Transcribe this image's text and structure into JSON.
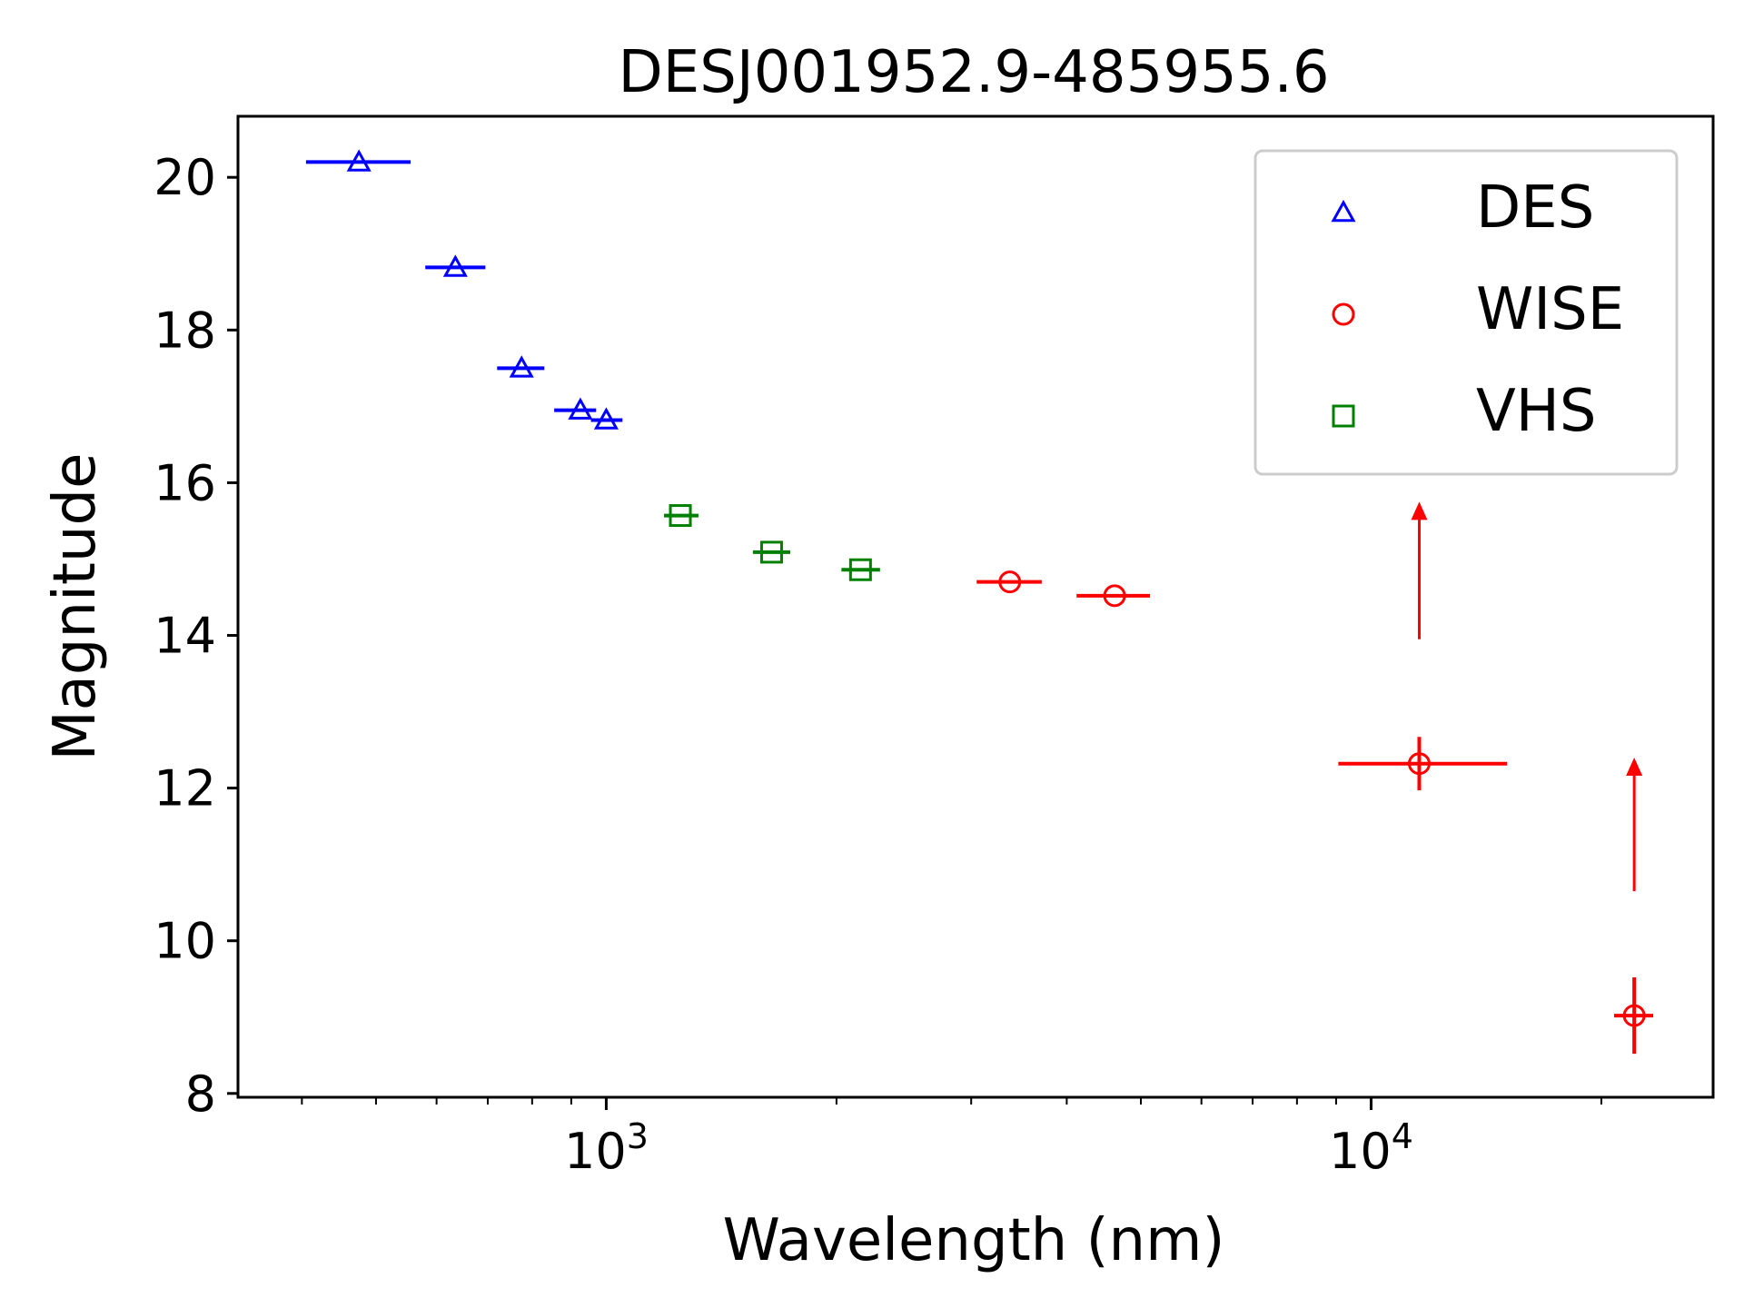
{
  "chart_data": {
    "type": "scatter",
    "title": "DESJ001952.9-485955.6",
    "xlabel": "Wavelength (nm)",
    "ylabel": "Magnitude",
    "xscale": "log",
    "xlim": [
      330,
      28000
    ],
    "ylim": [
      7.95,
      20.8
    ],
    "yticks": [
      8,
      10,
      12,
      14,
      16,
      18,
      20
    ],
    "xticks_major": [
      {
        "value": 1000,
        "base": "10",
        "exp": "3"
      },
      {
        "value": 10000,
        "base": "10",
        "exp": "4"
      }
    ],
    "legend": {
      "placement": "top-right"
    },
    "grid": false,
    "series": [
      {
        "name": "DES",
        "marker": "triangle",
        "color": "#0000ff",
        "points": [
          {
            "x": 475,
            "y": 20.2,
            "xerr": [
              70,
              80
            ]
          },
          {
            "x": 635,
            "y": 18.82,
            "xerr": [
              55,
              60
            ]
          },
          {
            "x": 775,
            "y": 17.5,
            "xerr": [
              55,
              55
            ]
          },
          {
            "x": 925,
            "y": 16.95,
            "xerr": [
              70,
              45
            ]
          },
          {
            "x": 1000,
            "y": 16.82,
            "xerr": [
              45,
              50
            ]
          }
        ]
      },
      {
        "name": "WISE",
        "marker": "circle",
        "color": "#ff0000",
        "points": [
          {
            "x": 3370,
            "y": 14.7,
            "xerr": [
              320,
              340
            ]
          },
          {
            "x": 4620,
            "y": 14.52,
            "xerr": [
              500,
              520
            ]
          },
          {
            "x": 11560,
            "y": 12.32,
            "xerr": [
              2500,
              3500
            ],
            "yerr": 0.35
          },
          {
            "x": 22080,
            "y": 9.02,
            "xerr": [
              1300,
              1300
            ],
            "yerr": 0.5
          }
        ],
        "lower_limits": [
          {
            "x": 11560,
            "y_from": 13.95,
            "y_to": 15.75
          },
          {
            "x": 22080,
            "y_from": 10.65,
            "y_to": 12.4
          }
        ]
      },
      {
        "name": "VHS",
        "marker": "square",
        "color": "#008000",
        "points": [
          {
            "x": 1250,
            "y": 15.57,
            "xerr": [
              60,
              70
            ]
          },
          {
            "x": 1645,
            "y": 15.09,
            "xerr": [
              90,
              95
            ]
          },
          {
            "x": 2150,
            "y": 14.86,
            "xerr": [
              120,
              130
            ]
          }
        ]
      }
    ]
  }
}
